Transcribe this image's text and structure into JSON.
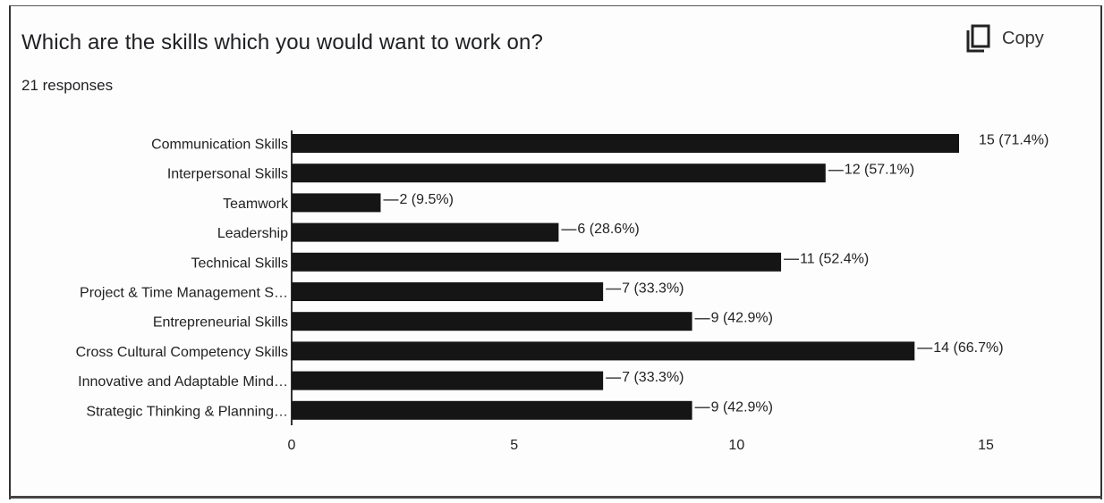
{
  "header": {
    "question": "Which are the skills which you would want to work on?",
    "responses": "21 responses",
    "copy_label": "Copy",
    "copy_icon": "copy-icon"
  },
  "colors": {
    "bar": "#151515",
    "text": "#222222",
    "axis": "#333333"
  },
  "chart_data": {
    "type": "bar",
    "orientation": "horizontal",
    "categories": [
      "Communication Skills",
      "Interpersonal Skills",
      "Teamwork",
      "Leadership",
      "Technical Skills",
      "Project & Time Management S…",
      "Entrepreneurial Skills",
      "Cross Cultural Competency Skills",
      "Innovative and Adaptable Mind…",
      "Strategic Thinking & Planning…"
    ],
    "values": [
      15,
      12,
      2,
      6,
      11,
      7,
      9,
      14,
      7,
      9
    ],
    "data_labels": [
      "15 (71.4%)",
      "12 (57.1%)",
      "2 (9.5%)",
      "6 (28.6%)",
      "11 (52.4%)",
      "7 (33.3%)",
      "9 (42.9%)",
      "14 (66.7%)",
      "7 (33.3%)",
      "9 (42.9%)"
    ],
    "xticks": [
      "0",
      "5",
      "10",
      "15"
    ],
    "xtick_values": [
      0,
      5,
      10,
      15
    ],
    "xlim": [
      0,
      15
    ],
    "grid": false,
    "legend": "none"
  }
}
